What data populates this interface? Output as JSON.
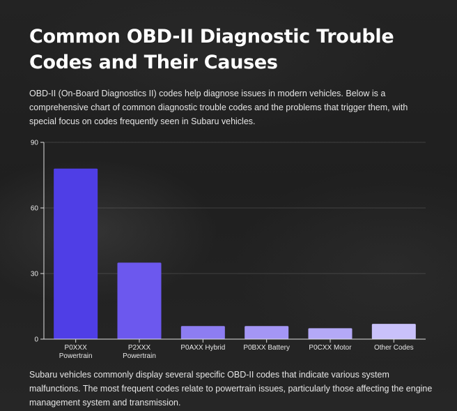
{
  "page": {
    "title": "Common OBD-II Diagnostic Trouble Codes and Their Causes",
    "intro": "OBD-II (On-Board Diagnostics II) codes help diagnose issues in modern vehicles. Below is a comprehensive chart of common diagnostic trouble codes and the problems that trigger them, with special focus on codes frequently seen in Subaru vehicles.",
    "outro": "Subaru vehicles commonly display several specific OBD-II codes that indicate various system malfunctions. The most frequent codes relate to powertrain issues, particularly those affecting the engine management system and transmission."
  },
  "chart_data": {
    "type": "bar",
    "categories": [
      [
        "P0XXX",
        "Powertrain"
      ],
      [
        "P2XXX",
        "Powertrain"
      ],
      [
        "P0AXX Hybrid"
      ],
      [
        "P0BXX Battery"
      ],
      [
        "P0CXX Motor"
      ],
      [
        "Other Codes"
      ]
    ],
    "values": [
      78,
      35,
      6,
      6,
      5,
      7
    ],
    "colors": [
      "#4f3ee6",
      "#6c58ee",
      "#8d7df2",
      "#a496f5",
      "#b4a9f7",
      "#c9c1fa"
    ],
    "ylim": [
      0,
      90
    ],
    "yticks": [
      0,
      30,
      60,
      90
    ],
    "grid": true,
    "title": "",
    "xlabel": "",
    "ylabel": ""
  }
}
